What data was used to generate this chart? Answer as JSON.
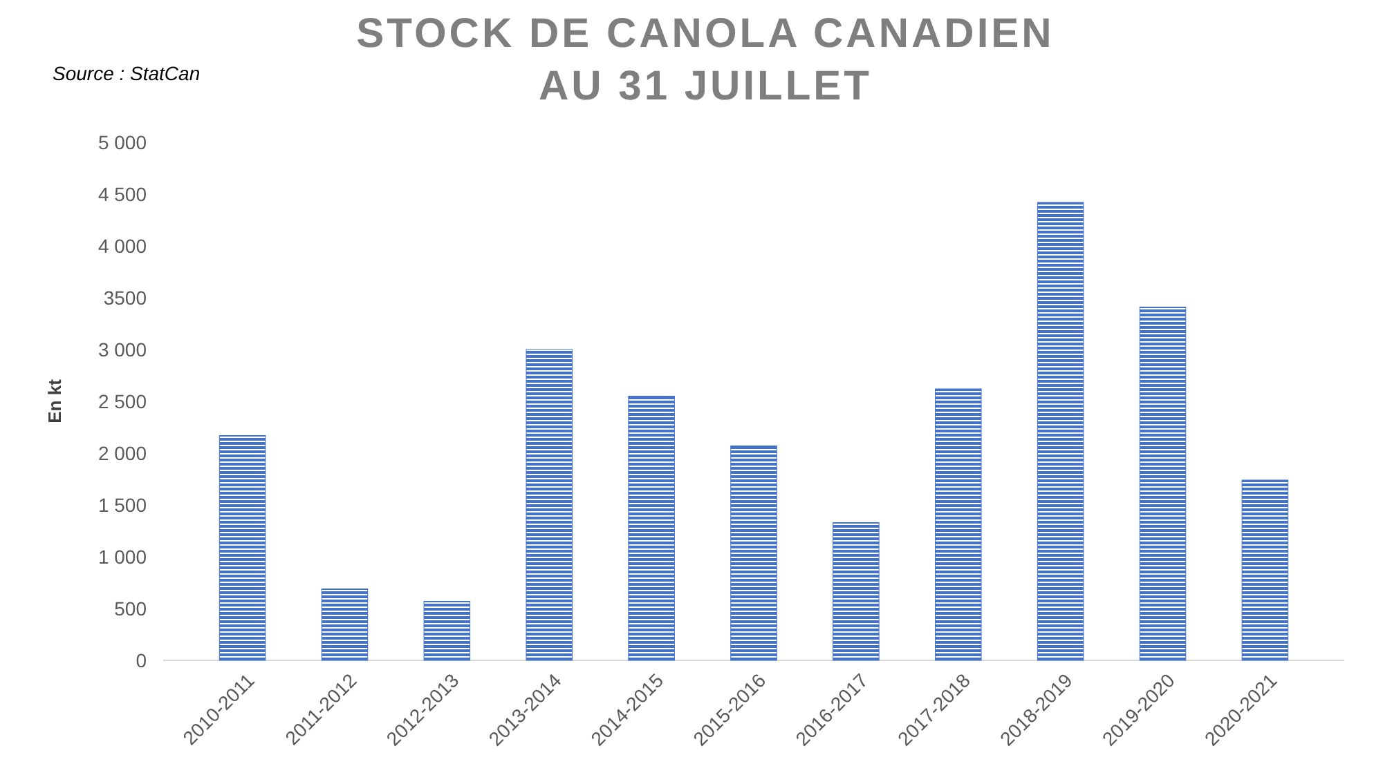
{
  "chart_data": {
    "type": "bar",
    "title": "STOCK DE CANOLA CANADIEN\nAU 31 JUILLET",
    "ylabel": "En kt",
    "annotations": [
      "Source : StatCan"
    ],
    "categories": [
      "2010-2011",
      "2011-2012",
      "2012-2013",
      "2013-2014",
      "2014-2015",
      "2015-2016",
      "2016-2017",
      "2017-2018",
      "2018-2019",
      "2019-2020",
      "2020-2021"
    ],
    "values": [
      2170,
      690,
      570,
      3000,
      2550,
      2070,
      1330,
      2620,
      4420,
      3410,
      1740
    ],
    "color": "#4472c4",
    "ylim": [
      0,
      5000
    ],
    "yticks": [
      0,
      500,
      {
        "value": 1000,
        "label": "1 000"
      },
      {
        "value": 1500,
        "label": "1 500"
      },
      {
        "value": 2000,
        "label": "2 000"
      },
      {
        "value": 2500,
        "label": "2 500"
      },
      {
        "value": 3000,
        "label": "3 000"
      },
      3500,
      {
        "value": 4000,
        "label": "4 000"
      },
      {
        "value": 4500,
        "label": "4 500"
      },
      {
        "value": 5000,
        "label": "5 000"
      }
    ],
    "grid": false
  }
}
